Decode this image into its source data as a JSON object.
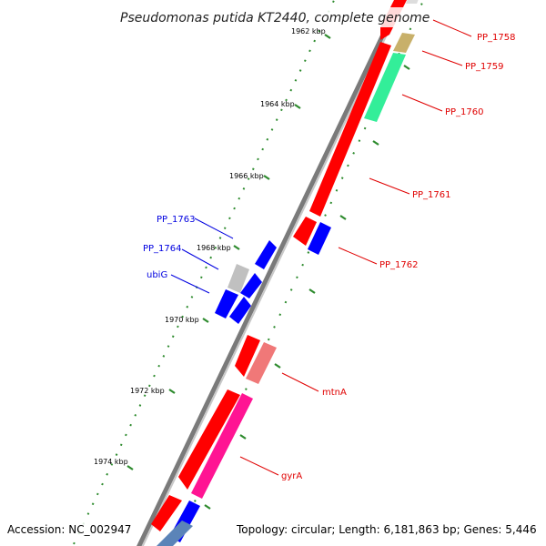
{
  "title": "Pseudomonas putida KT2440, complete genome",
  "footer": {
    "accession": "Accession: NC_002947",
    "summary": "Topology: circular; Length: 6,181,863 bp; Genes: 5,446"
  },
  "scale_labels": [
    "1962 kbp",
    "1964 kbp",
    "1966 kbp",
    "1968 kbp",
    "1970 kbp",
    "1972 kbp",
    "1974 kbp"
  ],
  "genes_forward": [
    "PP_1758",
    "PP_1759",
    "PP_1760",
    "PP_1761",
    "PP_1762",
    "mtnA",
    "gyrA"
  ],
  "genes_reverse": [
    "PP_1763",
    "PP_1764",
    "ubiG"
  ],
  "colors": {
    "backbone": "#808080",
    "gene_red": "#ff0000",
    "gene_blue": "#0000ff",
    "gene_tan": "#c8b06a",
    "gene_green": "#33ee99",
    "gene_pink": "#f07878",
    "gene_magenta": "#ff1493",
    "gene_steel": "#5b84b8",
    "gene_gray": "#c0c0c0",
    "tick": "#2e8b2e"
  }
}
